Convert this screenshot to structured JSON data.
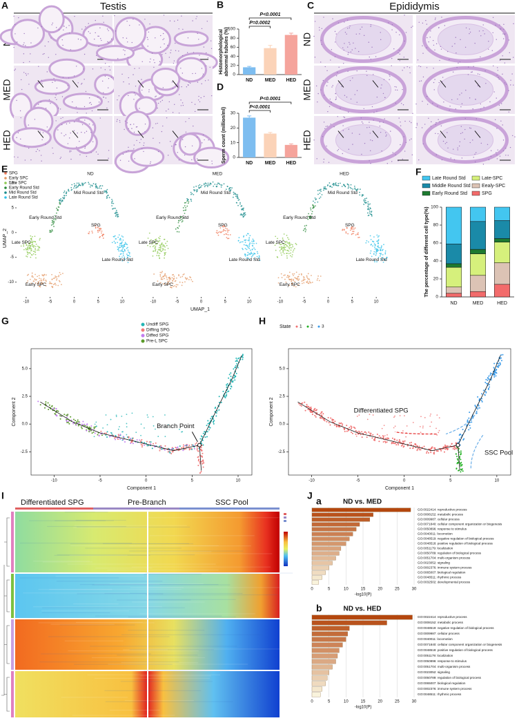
{
  "panels": {
    "A": {
      "label": "A",
      "title": "Testis",
      "rows": [
        "ND",
        "MED",
        "HED"
      ]
    },
    "C": {
      "label": "C",
      "title": "Epididymis",
      "rows": [
        "ND",
        "MED",
        "HED"
      ]
    },
    "E": {
      "label": "E",
      "legend": [
        {
          "name": "SPG",
          "color": "#f07a5a"
        },
        {
          "name": "Early SPC",
          "color": "#e39a66"
        },
        {
          "name": "Late SPC",
          "color": "#8cc850"
        },
        {
          "name": "Early Round Std",
          "color": "#2a8a3a"
        },
        {
          "name": "Mid Round Std",
          "color": "#1a8c8c"
        },
        {
          "name": "Late Round Std",
          "color": "#30c0e8"
        }
      ],
      "plots": [
        "ND",
        "MED",
        "HED"
      ],
      "clusters": [
        "SPG",
        "Early SPC",
        "Late SPC",
        "Early Round Std",
        "Mid Round Std",
        "Late Round Std"
      ],
      "xlabel": "UMAP_1",
      "ylabel": "UMAP_2",
      "xlim": [
        -12,
        13
      ],
      "ylim": [
        -13,
        11
      ],
      "xticks": [
        -10,
        -5,
        0,
        5,
        10
      ],
      "yticks": [
        -10,
        -5,
        0,
        5,
        10
      ]
    },
    "G": {
      "label": "G",
      "legend": [
        {
          "name": "Undiff  SPG",
          "color": "#22b5b5"
        },
        {
          "name": "Diffing SPG",
          "color": "#f07a7a"
        },
        {
          "name": "Diffed  SPG",
          "color": "#c27ef0"
        },
        {
          "name": "Pre-L   SPC",
          "color": "#5a9a2a"
        }
      ],
      "annotation": "Branch Point",
      "xlabel": "Component 1",
      "ylabel": "Component 2",
      "xlim": [
        -12.5,
        11.5
      ],
      "ylim": [
        -4.6,
        6.8
      ],
      "xticks": [
        -10,
        -5,
        0,
        5,
        10
      ],
      "yticks": [
        -2.5,
        {
          "value": 0,
          "label": "0.0"
        },
        2.5,
        {
          "value": 5,
          "label": "5.0"
        }
      ]
    },
    "H": {
      "label": "H",
      "legend_title": "State",
      "legend": [
        {
          "name": "1",
          "color": "#f07070"
        },
        {
          "name": "2",
          "color": "#22b022"
        },
        {
          "name": "3",
          "color": "#3a9ae8"
        }
      ],
      "annotations": [
        "Differentiated SPG",
        "SSC Pool"
      ],
      "xlabel": "Component 1",
      "ylabel": "Component 2",
      "xlim": [
        -12.5,
        11.5
      ],
      "ylim": [
        -4.6,
        6.8
      ],
      "xticks": [
        -10,
        -5,
        0,
        5,
        10
      ],
      "yticks": [
        -2.5,
        {
          "value": 0,
          "label": "0.0"
        },
        2.5,
        {
          "value": 5,
          "label": "5.0"
        }
      ]
    },
    "I": {
      "label": "I",
      "segments": [
        "Differentiated SPG",
        "Pre-Branch",
        "SSC Pool"
      ]
    },
    "J": {
      "label": "J"
    }
  },
  "chart_data": [
    {
      "type": "bar",
      "label": "B",
      "ylabel": "Histomorphological abnormal tubules (%)",
      "categories": [
        "ND",
        "MED",
        "HED"
      ],
      "values": [
        16,
        58,
        87
      ],
      "errors": [
        2,
        6,
        4
      ],
      "colors": [
        "#7dbdf0",
        "#fbd3b8",
        "#f5a49c"
      ],
      "ylim": [
        0,
        100
      ],
      "yticks": [
        0,
        20,
        40,
        60,
        80,
        100
      ],
      "annotations": [
        "P<0.0001",
        "P=0.0002"
      ]
    },
    {
      "type": "bar",
      "label": "D",
      "ylabel": "Sperm count (million/ml)",
      "categories": [
        "ND",
        "MED",
        "HED"
      ],
      "values": [
        27,
        16.2,
        8.5
      ],
      "errors": [
        1.2,
        0.8,
        0.7
      ],
      "colors": [
        "#7dbdf0",
        "#fbd3b8",
        "#f5a49c"
      ],
      "ylim": [
        0,
        30
      ],
      "yticks": [
        0,
        10,
        20,
        30
      ],
      "annotations": [
        "P<0.0001",
        "P<0.0001"
      ]
    },
    {
      "type": "stacked_bar",
      "label": "F",
      "ylabel": "The percentage of different cell type(%)",
      "categories": [
        "ND",
        "MED",
        "HED"
      ],
      "series": [
        {
          "name": "SPG",
          "color": "#f26b6b",
          "values": [
            4,
            6,
            14
          ]
        },
        {
          "name": "Eealy-SPC",
          "color": "#dcc3b5",
          "values": [
            7,
            18,
            24
          ]
        },
        {
          "name": "Late-SPC",
          "color": "#d6f07c",
          "values": [
            22,
            24,
            23
          ]
        },
        {
          "name": "Early Round Std",
          "color": "#1d7a30",
          "values": [
            4,
            5,
            4
          ]
        },
        {
          "name": "Middle Round Std",
          "color": "#1a8aa8",
          "values": [
            22,
            31,
            20
          ]
        },
        {
          "name": "Late Round Std",
          "color": "#43c6f0",
          "values": [
            41,
            16,
            15
          ]
        }
      ],
      "ylim": [
        0,
        100
      ],
      "yticks": [
        0,
        20,
        40,
        60,
        80,
        100
      ]
    },
    {
      "type": "hbar",
      "label": "a",
      "title": "ND vs. MED",
      "categories": [
        "GO:0022414: reproductive process",
        "GO:0008152: metabolic process",
        "GO:0009987: cellular process",
        "GO:0071840: cellular component organization or biogenesis",
        "GO:0050896: response to stimulus",
        "GO:0040011: locomotion",
        "GO:0048519: negative regulation of biological process",
        "GO:0048518: positive regulation of biological process",
        "GO:0051179: localization",
        "GO:0050789: regulation of biological process",
        "GO:0051704: multi-organism process",
        "GO:0023052: signaling",
        "GO:0002376: immune system process",
        "GO:0065007: biological regulation",
        "GO:0048511: rhythmic process",
        "GO:0032502: developmental process"
      ],
      "values": [
        29,
        18,
        17,
        14,
        13,
        12,
        11,
        10,
        8.5,
        8,
        7,
        6,
        5,
        4,
        3,
        2
      ],
      "xlabel": "-log10(P)",
      "xlim": [
        0,
        30
      ],
      "xticks": [
        0,
        5,
        10,
        15,
        20,
        25,
        30
      ],
      "color_range": [
        "#b4470e",
        "#f9f3dc"
      ]
    },
    {
      "type": "hbar",
      "label": "b",
      "title": "ND vs. HED",
      "categories": [
        "GO:0022414: reproductive process",
        "GO:0008152: metabolic process",
        "GO:0048519: negative regulation of biological process",
        "GO:0009987: cellular process",
        "GO:0040011: locomotion",
        "GO:0071840: cellular component organization or biogenesis",
        "GO:0048518: positive regulation of biological process",
        "GO:0051179: localization",
        "GO:0050896: response to stimulus",
        "GO:0051704: multi-organism process",
        "GO:0023052: signaling",
        "GO:0050789: regulation of biological process",
        "GO:0065007: biological regulation",
        "GO:0002376: immune system process",
        "GO:0048511: rhythmic process"
      ],
      "values": [
        29.5,
        22,
        11,
        10.5,
        10,
        9,
        8,
        7.5,
        7,
        6,
        5,
        4.5,
        4,
        3,
        2.5
      ],
      "xlabel": "-log10(P)",
      "xlim": [
        0,
        30
      ],
      "xticks": [
        0,
        5,
        10,
        15,
        20,
        25,
        30
      ],
      "color_range": [
        "#b4470e",
        "#f9f3dc"
      ]
    }
  ]
}
